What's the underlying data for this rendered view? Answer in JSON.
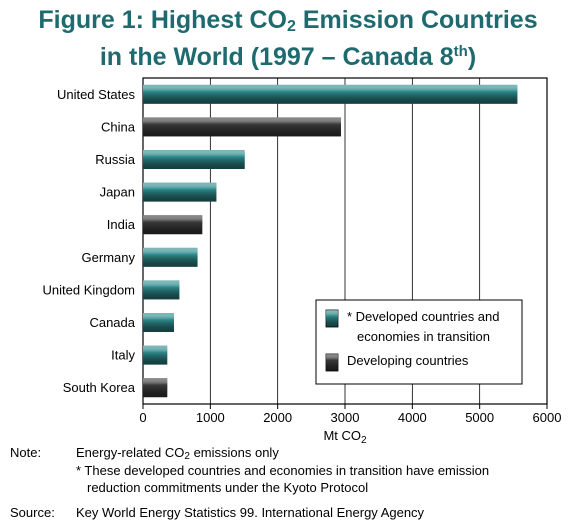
{
  "title": {
    "line1_pre": "Figure 1: Highest CO",
    "line1_sub": "2",
    "line1_post": " Emission Countries",
    "line2_pre": "in the World (1997 – Canada 8",
    "line2_sup": "th",
    "line2_post": ")"
  },
  "chart_data": {
    "type": "bar",
    "orientation": "horizontal",
    "categories": [
      "United States",
      "China",
      "Russia",
      "Japan",
      "India",
      "Germany",
      "United Kingdom",
      "Canada",
      "Italy",
      "South Korea"
    ],
    "values": [
      5560,
      2940,
      1510,
      1090,
      880,
      810,
      540,
      460,
      360,
      360
    ],
    "groups": [
      "developed",
      "developing",
      "developed",
      "developed",
      "developing",
      "developed",
      "developed",
      "developed",
      "developed",
      "developing"
    ],
    "xlim": [
      0,
      6000
    ],
    "xticks": [
      0,
      1000,
      2000,
      3000,
      4000,
      5000,
      6000
    ],
    "xlabel_pre": "Mt CO",
    "xlabel_sub": "2",
    "grid": "vertical",
    "colors": {
      "developed": "#2e8a8c",
      "developing": "#3c3c3c"
    },
    "legend": {
      "placement": "bottom-right",
      "items": [
        {
          "group": "developed",
          "line1": "* Developed countries and",
          "line2": "economies in transition"
        },
        {
          "group": "developing",
          "line1": "Developing countries",
          "line2": ""
        }
      ]
    }
  },
  "notes": {
    "note_label": "Note:",
    "note_line1_pre": "Energy-related CO",
    "note_line1_sub": "2",
    "note_line1_post": " emissions only",
    "note_line2": "* These developed countries and economies in transition have emission",
    "note_line3": "reduction commitments under the Kyoto Protocol",
    "source_label": "Source:",
    "source_text": "Key World Energy Statistics 99. International Energy Agency"
  }
}
